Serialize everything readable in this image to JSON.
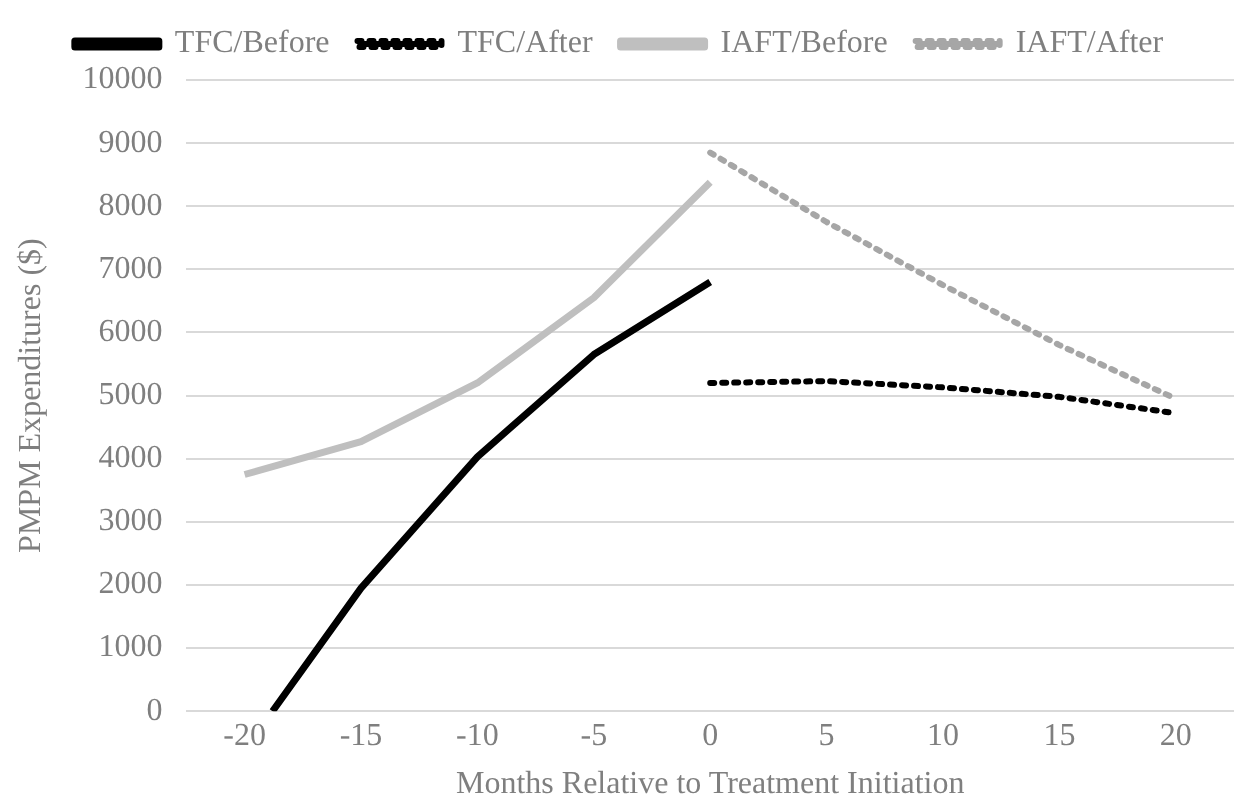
{
  "chart_data": {
    "type": "line",
    "xlabel": "Months Relative to Treatment Initiation",
    "ylabel": "PMPM Expenditures ($)",
    "xlim": [
      -22.5,
      22.5
    ],
    "xticks": [
      -20,
      -15,
      -10,
      -5,
      0,
      5,
      10,
      15,
      20
    ],
    "ylim": [
      0,
      10000
    ],
    "yticks": [
      0,
      1000,
      2000,
      3000,
      4000,
      5000,
      6000,
      7000,
      8000,
      9000,
      10000
    ],
    "grid": "y",
    "legend": "top",
    "marker": "none",
    "series": [
      {
        "name": "TFC/Before",
        "color": "#000000",
        "line_style": "solid",
        "x": [
          -18.8,
          -15,
          -10,
          -5,
          0
        ],
        "values": [
          0,
          1950,
          4030,
          5650,
          6800
        ]
      },
      {
        "name": "TFC/After",
        "color": "#000000",
        "line_style": "dotted",
        "x": [
          0,
          5,
          10,
          15,
          20
        ],
        "values": [
          5200,
          5230,
          5130,
          4980,
          4720
        ]
      },
      {
        "name": "IAFT/Before",
        "color": "#bfbfbf",
        "line_style": "solid",
        "x": [
          -20,
          -15,
          -10,
          -5,
          0
        ],
        "values": [
          3750,
          4270,
          5200,
          6550,
          8380
        ]
      },
      {
        "name": "IAFT/After",
        "color": "#a6a6a6",
        "line_style": "dotted",
        "x": [
          0,
          5,
          10,
          15,
          20
        ],
        "values": [
          8850,
          7750,
          6750,
          5800,
          4950
        ]
      }
    ]
  }
}
